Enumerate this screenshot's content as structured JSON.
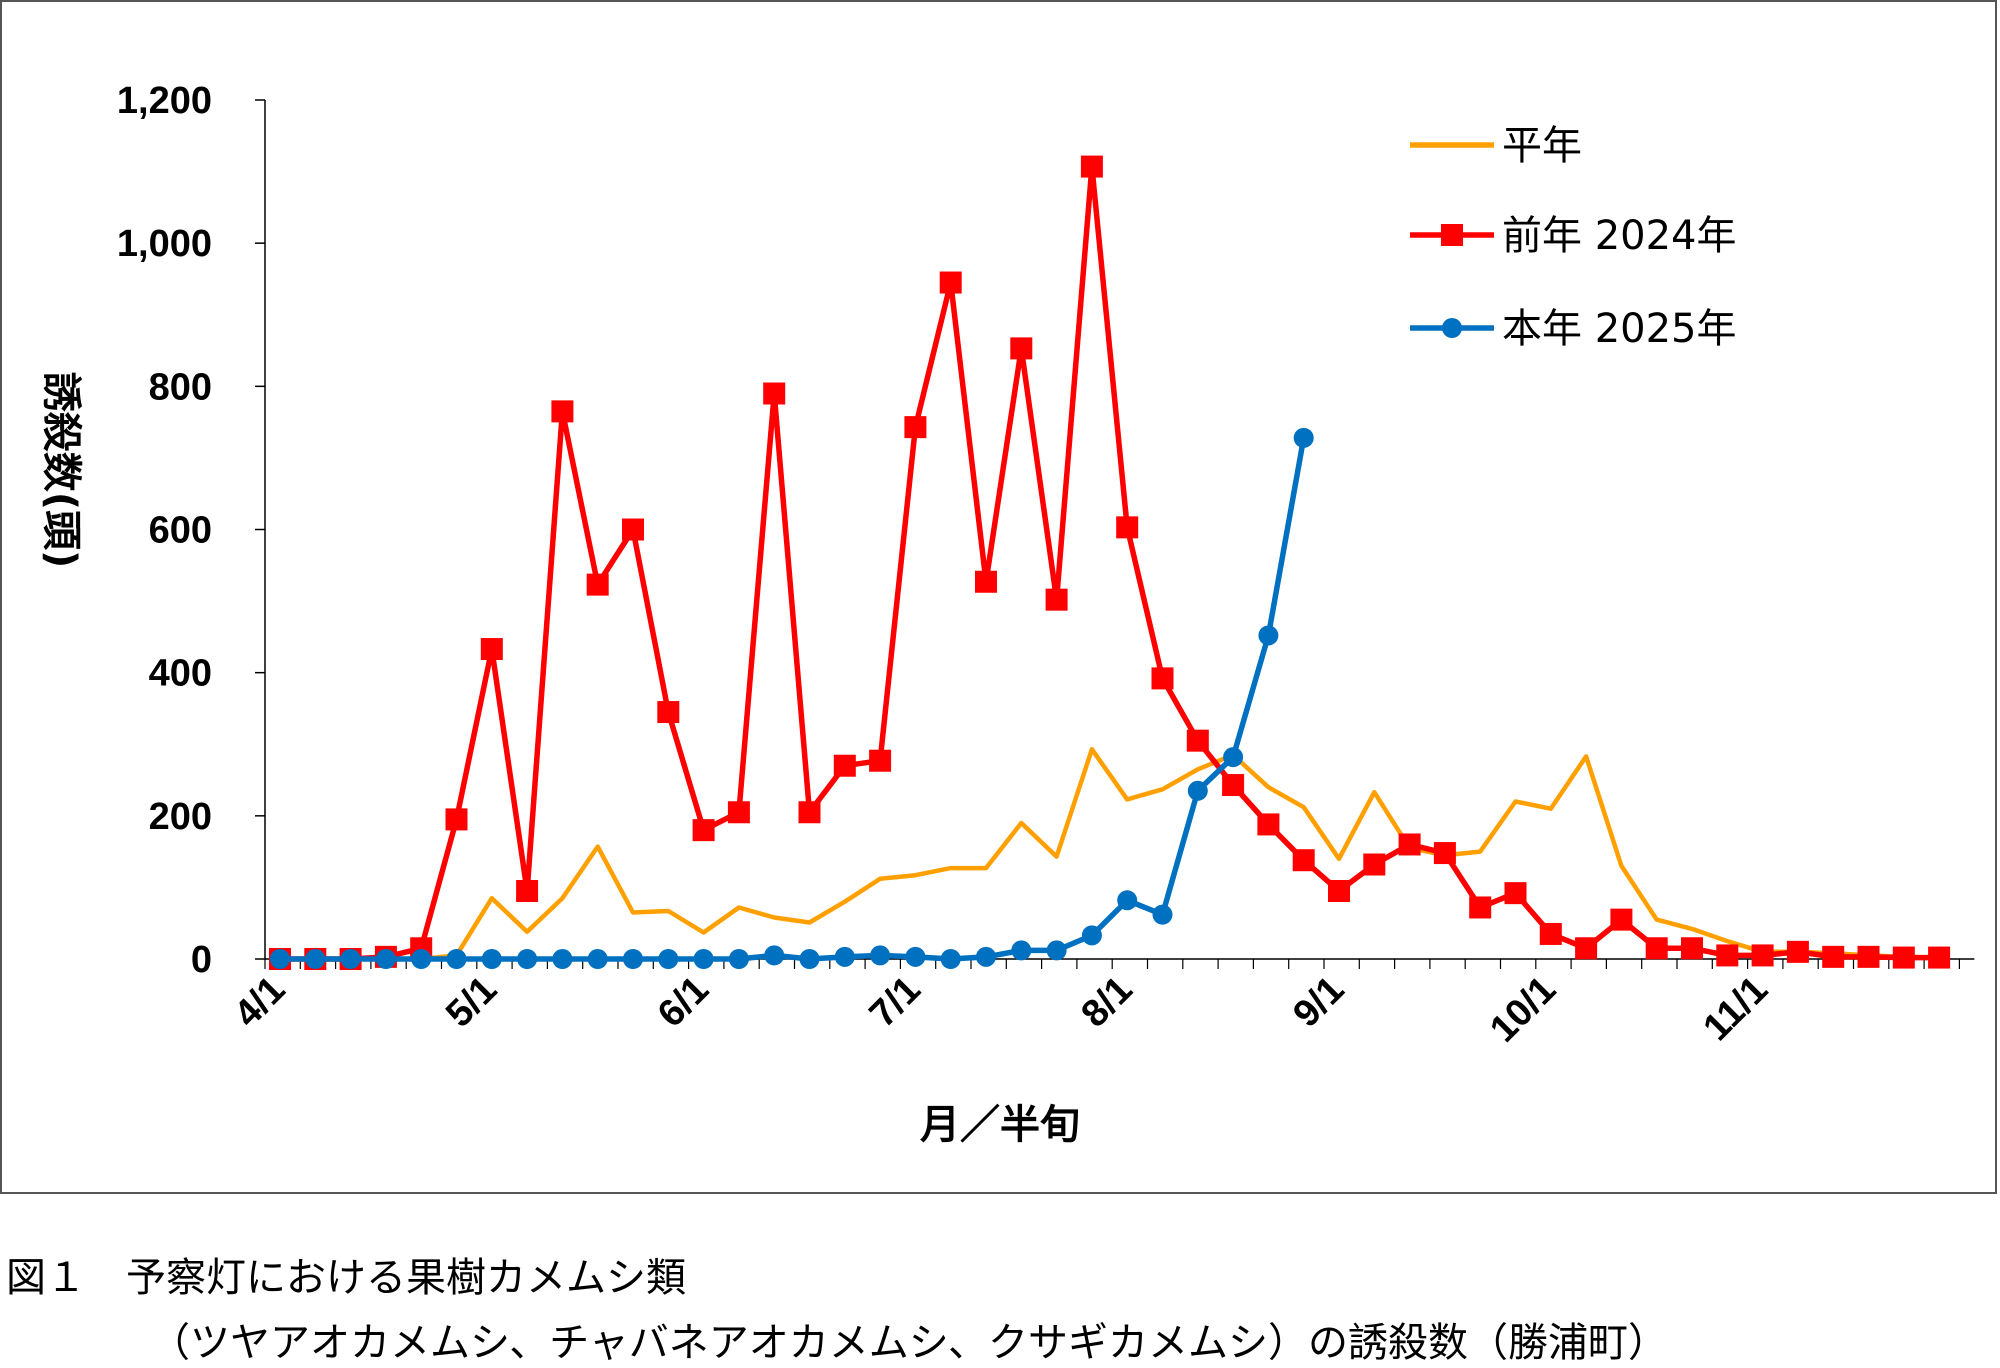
{
  "chart_data": {
    "type": "line",
    "title": "",
    "xlabel": "月／半旬",
    "ylabel": "誘殺数(頭)",
    "ylim": [
      0,
      1200
    ],
    "yticks": [
      "0",
      "200",
      "400",
      "600",
      "800",
      "1,000",
      "1,200"
    ],
    "ytick_values": [
      0,
      200,
      400,
      600,
      800,
      1000,
      1200
    ],
    "xtick_labels": [
      "4/1",
      "5/1",
      "6/1",
      "7/1",
      "8/1",
      "9/1",
      "10/1",
      "11/1"
    ],
    "xtick_index": [
      0,
      6,
      12,
      18,
      24,
      30,
      36,
      42
    ],
    "n_periods": 48,
    "legend_position": "top-right",
    "grid": false,
    "series": [
      {
        "name": "平年",
        "color": "#FFA000",
        "marker": "none",
        "values": [
          0,
          0,
          0,
          0,
          0,
          5,
          85,
          38,
          85,
          157,
          65,
          67,
          37,
          72,
          58,
          51,
          80,
          112,
          117,
          127,
          127,
          190,
          143,
          293,
          223,
          237,
          265,
          285,
          240,
          212,
          140,
          233,
          155,
          145,
          150,
          220,
          210,
          283,
          130,
          55,
          42,
          25,
          10,
          10,
          8,
          5,
          3,
          2
        ]
      },
      {
        "name": "前年 2024年",
        "color": "#FF0000",
        "marker": "square",
        "values": [
          0,
          0,
          0,
          3,
          15,
          195,
          433,
          95,
          765,
          523,
          600,
          345,
          180,
          205,
          790,
          205,
          270,
          277,
          743,
          945,
          527,
          853,
          502,
          1107,
          603,
          392,
          305,
          243,
          188,
          138,
          95,
          132,
          160,
          148,
          72,
          92,
          35,
          15,
          55,
          15,
          15,
          5,
          5,
          10,
          3,
          3,
          2,
          2
        ]
      },
      {
        "name": "本年 2025年",
        "color": "#0070C0",
        "marker": "circle",
        "values": [
          0,
          0,
          0,
          0,
          0,
          0,
          0,
          0,
          0,
          0,
          0,
          0,
          0,
          0,
          5,
          0,
          3,
          5,
          3,
          0,
          3,
          12,
          12,
          33,
          82,
          62,
          235,
          282,
          452,
          728
        ]
      }
    ]
  },
  "caption": {
    "line1": "図１　予察灯における果樹カメムシ類",
    "line2": "（ツヤアオカメムシ、チャバネアオカメムシ、クサギカメムシ）の誘殺数（勝浦町）"
  }
}
